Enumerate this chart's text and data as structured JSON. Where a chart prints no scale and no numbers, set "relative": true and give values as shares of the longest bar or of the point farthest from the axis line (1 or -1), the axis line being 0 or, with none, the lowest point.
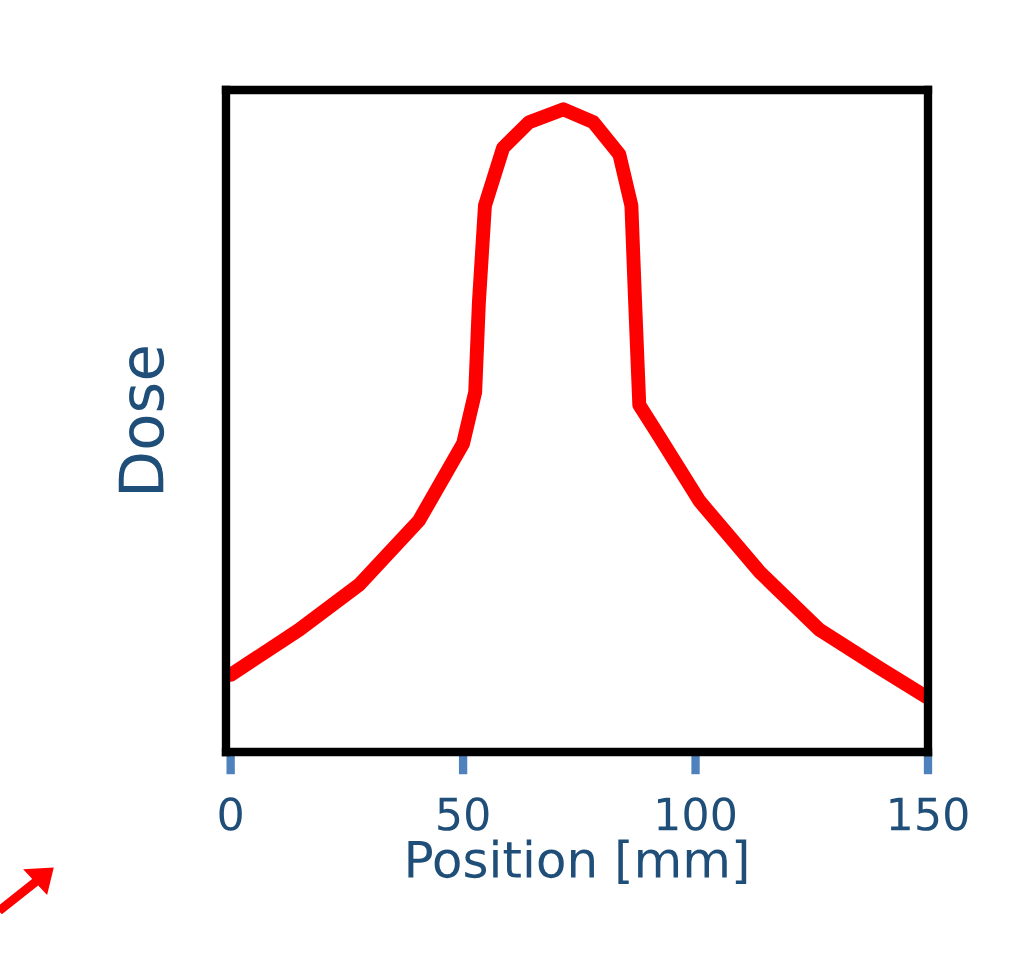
{
  "chart_data": {
    "type": "line",
    "relative": true,
    "xlabel": "Position [mm]",
    "ylabel": "Dose",
    "xlim": [
      -1,
      150
    ],
    "xticks": [
      0,
      50,
      100,
      150
    ],
    "grid": false,
    "legend": false,
    "marker": "none",
    "line_style": "solid",
    "series": [
      {
        "color": "#ff0000",
        "x": [
          0,
          14.7,
          27.6,
          40.5,
          50,
          52.6,
          53.4,
          54.7,
          58.6,
          64.2,
          71.6,
          78,
          83.6,
          86.2,
          87,
          87.9,
          91.4,
          100.9,
          113.8,
          126.7,
          139.7,
          149.6
        ],
        "values": [
          0.12,
          0.19,
          0.26,
          0.36,
          0.48,
          0.56,
          0.7,
          0.85,
          0.94,
          0.98,
          1.0,
          0.98,
          0.93,
          0.85,
          0.7,
          0.54,
          0.5,
          0.39,
          0.28,
          0.19,
          0.13,
          0.086
        ]
      }
    ]
  }
}
